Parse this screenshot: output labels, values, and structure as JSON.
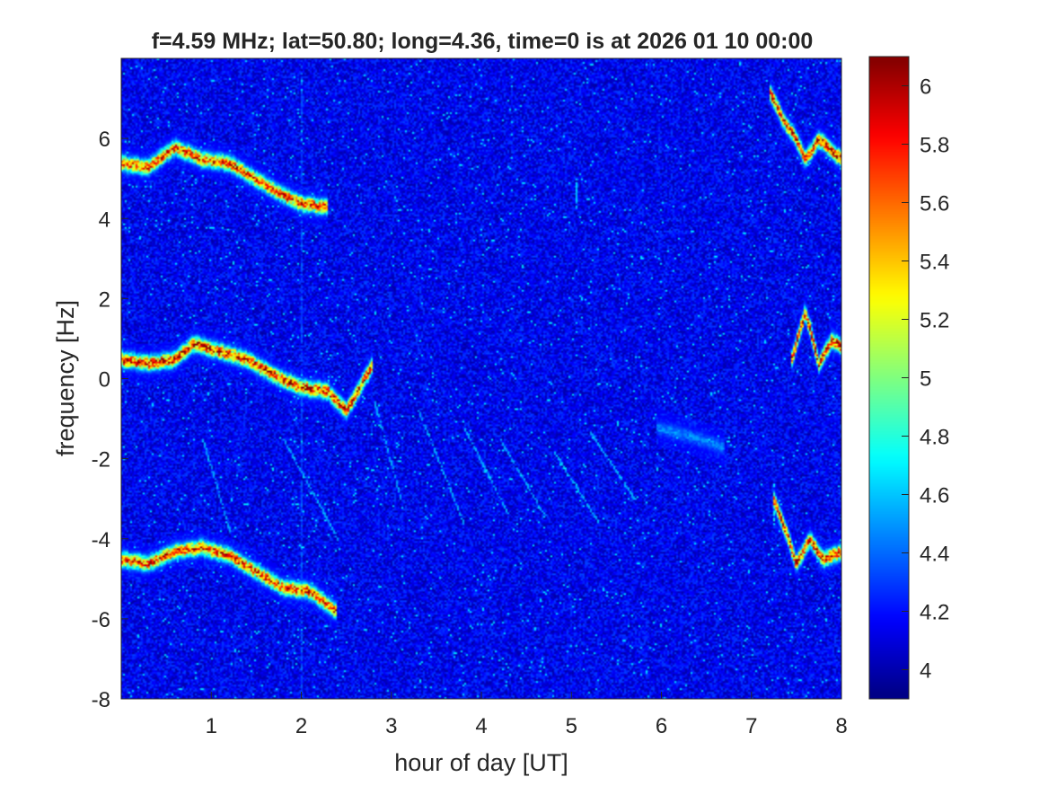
{
  "chart_data": {
    "type": "heatmap",
    "title": "f=4.59 MHz;  lat=50.80; long=4.36, time=0 is at 2026 01 10 00:00",
    "xlabel": "hour of day [UT]",
    "ylabel": "frequency [Hz]",
    "xlim": [
      0,
      8
    ],
    "ylim": [
      -8,
      8
    ],
    "xticks": [
      1,
      2,
      3,
      4,
      5,
      6,
      7,
      8
    ],
    "xtick_labels": [
      "1",
      "2",
      "3",
      "4",
      "5",
      "6",
      "7",
      "8"
    ],
    "yticks": [
      -8,
      -6,
      -4,
      -2,
      0,
      2,
      4,
      6
    ],
    "ytick_labels": [
      "-8",
      "-6",
      "-4",
      "-2",
      "0",
      "2",
      "4",
      "6"
    ],
    "colormap": "jet",
    "colorbar": {
      "clim": [
        3.9,
        6.1
      ],
      "ticks": [
        4,
        4.2,
        4.4,
        4.6,
        4.8,
        5,
        5.2,
        5.4,
        5.6,
        5.8,
        6
      ],
      "tick_labels": [
        "4",
        "4.2",
        "4.4",
        "4.6",
        "4.8",
        "5",
        "5.2",
        "5.4",
        "5.6",
        "5.8",
        "6"
      ]
    },
    "background_value": 4.15,
    "traces": [
      {
        "points": [
          [
            0.0,
            5.4
          ],
          [
            0.3,
            5.3
          ],
          [
            0.6,
            5.8
          ],
          [
            0.9,
            5.5
          ],
          [
            1.2,
            5.4
          ],
          [
            1.5,
            5.0
          ],
          [
            1.8,
            4.6
          ],
          [
            2.0,
            4.4
          ],
          [
            2.3,
            4.3
          ]
        ],
        "peak": 5.9
      },
      {
        "points": [
          [
            0.0,
            0.5
          ],
          [
            0.3,
            0.4
          ],
          [
            0.6,
            0.5
          ],
          [
            0.8,
            0.9
          ],
          [
            1.1,
            0.7
          ],
          [
            1.4,
            0.5
          ],
          [
            1.7,
            0.1
          ],
          [
            2.0,
            -0.2
          ],
          [
            2.3,
            -0.3
          ],
          [
            2.5,
            -0.8
          ],
          [
            2.8,
            0.4
          ]
        ],
        "peak": 6.0
      },
      {
        "points": [
          [
            0.0,
            -4.5
          ],
          [
            0.3,
            -4.6
          ],
          [
            0.6,
            -4.3
          ],
          [
            0.9,
            -4.2
          ],
          [
            1.2,
            -4.4
          ],
          [
            1.5,
            -4.8
          ],
          [
            1.8,
            -5.2
          ],
          [
            2.1,
            -5.3
          ],
          [
            2.4,
            -5.8
          ]
        ],
        "peak": 5.9
      },
      {
        "points": [
          [
            7.2,
            7.2
          ],
          [
            7.35,
            6.5
          ],
          [
            7.5,
            6.0
          ],
          [
            7.6,
            5.5
          ],
          [
            7.75,
            6.0
          ],
          [
            7.9,
            5.7
          ],
          [
            8.0,
            5.5
          ]
        ],
        "peak": 6.0
      },
      {
        "points": [
          [
            7.45,
            0.5
          ],
          [
            7.6,
            1.7
          ],
          [
            7.75,
            0.4
          ],
          [
            7.9,
            1.0
          ],
          [
            8.0,
            0.8
          ]
        ],
        "peak": 6.0
      },
      {
        "points": [
          [
            7.25,
            -3.0
          ],
          [
            7.4,
            -3.9
          ],
          [
            7.5,
            -4.6
          ],
          [
            7.65,
            -4.0
          ],
          [
            7.8,
            -4.5
          ],
          [
            8.0,
            -4.3
          ]
        ],
        "peak": 6.0
      },
      {
        "points": [
          [
            5.95,
            -1.2
          ],
          [
            6.3,
            -1.4
          ],
          [
            6.7,
            -1.7
          ]
        ],
        "peak": 4.5
      }
    ],
    "streaks": [
      {
        "x": 2.0,
        "y0": -8,
        "y1": 7.8,
        "value": 4.35
      },
      {
        "x": 5.05,
        "y0": 4.3,
        "y1": 5.0,
        "value": 4.6
      },
      {
        "x": 7.25,
        "y0": -2.6,
        "y1": -3.6,
        "value": 4.7
      }
    ],
    "diagonal_features": [
      [
        [
          2.8,
          -0.5
        ],
        [
          3.1,
          -3.0
        ]
      ],
      [
        [
          3.3,
          -0.8
        ],
        [
          3.8,
          -3.6
        ]
      ],
      [
        [
          3.8,
          -1.2
        ],
        [
          4.3,
          -3.4
        ]
      ],
      [
        [
          4.2,
          -1.5
        ],
        [
          4.7,
          -3.4
        ]
      ],
      [
        [
          4.8,
          -1.8
        ],
        [
          5.3,
          -3.6
        ]
      ],
      [
        [
          5.2,
          -1.3
        ],
        [
          5.7,
          -3.0
        ]
      ],
      [
        [
          1.8,
          -1.5
        ],
        [
          2.4,
          -4.0
        ]
      ],
      [
        [
          0.9,
          -1.5
        ],
        [
          1.2,
          -3.8
        ]
      ]
    ]
  }
}
